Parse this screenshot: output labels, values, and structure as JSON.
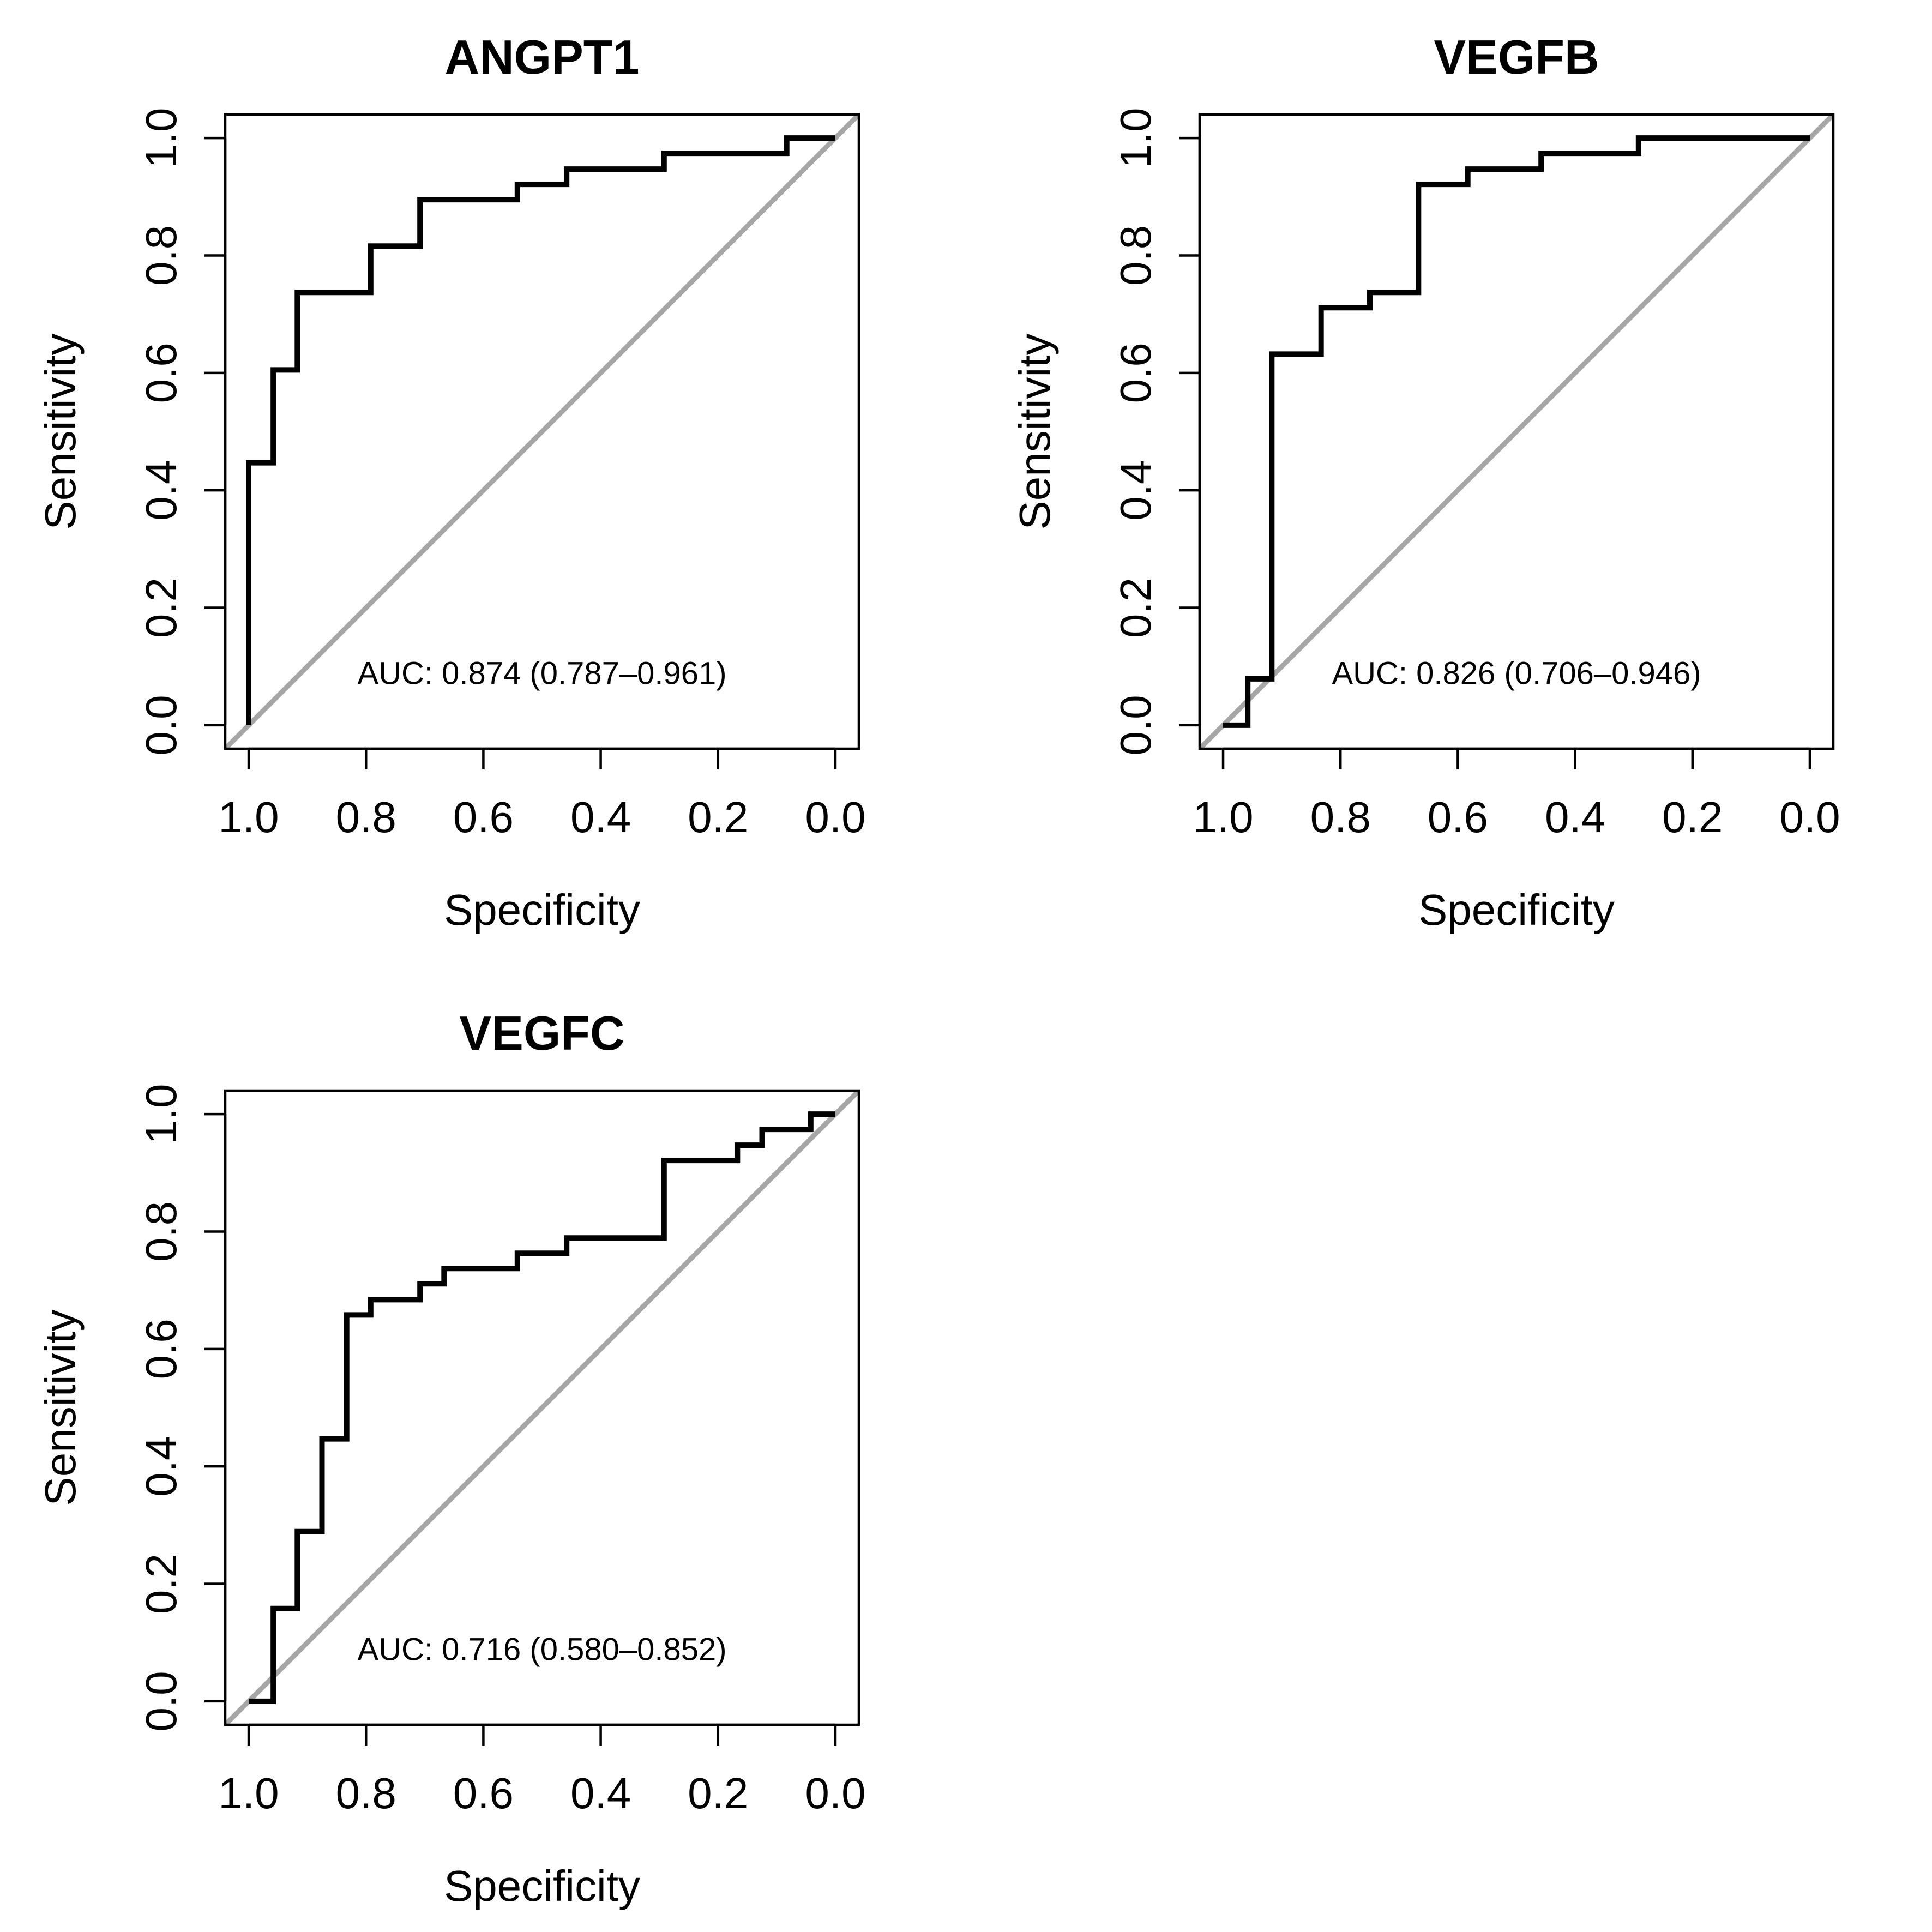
{
  "colors": {
    "roc_line": "#000000",
    "reference_line": "#a6a6a6",
    "axes": "#000000",
    "background": "#ffffff"
  },
  "chart_data": [
    {
      "type": "line",
      "title": "ANGPT1",
      "xlabel": "Specificity",
      "ylabel": "Sensitivity",
      "xlim": [
        1.0,
        0.0
      ],
      "ylim": [
        0.0,
        1.0
      ],
      "x_reversed": true,
      "x_ticks": [
        "1.0",
        "0.8",
        "0.6",
        "0.4",
        "0.2",
        "0.0"
      ],
      "y_ticks": [
        "0.0",
        "0.2",
        "0.4",
        "0.6",
        "0.8",
        "1.0"
      ],
      "grid": false,
      "annotation": "AUC: 0.874 (0.787–0.961)",
      "reference_line": {
        "from": [
          1.0,
          0.0
        ],
        "to": [
          0.0,
          1.0
        ]
      },
      "series": [
        {
          "specificity": [
            1.0,
            1.0,
            0.958,
            0.958,
            0.917,
            0.917,
            0.792,
            0.792,
            0.708,
            0.708,
            0.542,
            0.542,
            0.458,
            0.458,
            0.292,
            0.292,
            0.083,
            0.083,
            0.0
          ],
          "sensitivity": [
            0.0,
            0.447,
            0.447,
            0.605,
            0.605,
            0.737,
            0.737,
            0.816,
            0.816,
            0.895,
            0.895,
            0.921,
            0.921,
            0.947,
            0.947,
            0.974,
            0.974,
            1.0,
            1.0
          ]
        }
      ]
    },
    {
      "type": "line",
      "title": "VEGFB",
      "xlabel": "Specificity",
      "ylabel": "Sensitivity",
      "xlim": [
        1.0,
        0.0
      ],
      "ylim": [
        0.0,
        1.0
      ],
      "x_reversed": true,
      "x_ticks": [
        "1.0",
        "0.8",
        "0.6",
        "0.4",
        "0.2",
        "0.0"
      ],
      "y_ticks": [
        "0.0",
        "0.2",
        "0.4",
        "0.6",
        "0.8",
        "1.0"
      ],
      "grid": false,
      "annotation": "AUC: 0.826 (0.706–0.946)",
      "reference_line": {
        "from": [
          1.0,
          0.0
        ],
        "to": [
          0.0,
          1.0
        ]
      },
      "series": [
        {
          "specificity": [
            1.0,
            0.958,
            0.958,
            0.917,
            0.917,
            0.833,
            0.833,
            0.75,
            0.75,
            0.667,
            0.667,
            0.583,
            0.583,
            0.458,
            0.458,
            0.292,
            0.292,
            0.0
          ],
          "sensitivity": [
            0.0,
            0.0,
            0.079,
            0.079,
            0.632,
            0.632,
            0.711,
            0.711,
            0.737,
            0.737,
            0.921,
            0.921,
            0.947,
            0.947,
            0.974,
            0.974,
            1.0,
            1.0
          ]
        }
      ]
    },
    {
      "type": "line",
      "title": "VEGFC",
      "xlabel": "Specificity",
      "ylabel": "Sensitivity",
      "xlim": [
        1.0,
        0.0
      ],
      "ylim": [
        0.0,
        1.0
      ],
      "x_reversed": true,
      "x_ticks": [
        "1.0",
        "0.8",
        "0.6",
        "0.4",
        "0.2",
        "0.0"
      ],
      "y_ticks": [
        "0.0",
        "0.2",
        "0.4",
        "0.6",
        "0.8",
        "1.0"
      ],
      "grid": false,
      "annotation": "AUC: 0.716 (0.580–0.852)",
      "reference_line": {
        "from": [
          1.0,
          0.0
        ],
        "to": [
          0.0,
          1.0
        ]
      },
      "series": [
        {
          "specificity": [
            1.0,
            0.958,
            0.958,
            0.917,
            0.917,
            0.875,
            0.875,
            0.833,
            0.833,
            0.792,
            0.792,
            0.708,
            0.708,
            0.667,
            0.667,
            0.542,
            0.542,
            0.458,
            0.458,
            0.292,
            0.292,
            0.167,
            0.167,
            0.125,
            0.125,
            0.042,
            0.042,
            0.0
          ],
          "sensitivity": [
            0.0,
            0.0,
            0.158,
            0.158,
            0.289,
            0.289,
            0.447,
            0.447,
            0.658,
            0.658,
            0.684,
            0.684,
            0.711,
            0.711,
            0.737,
            0.737,
            0.763,
            0.763,
            0.789,
            0.789,
            0.921,
            0.921,
            0.947,
            0.947,
            0.974,
            0.974,
            1.0,
            1.0
          ]
        }
      ]
    }
  ]
}
